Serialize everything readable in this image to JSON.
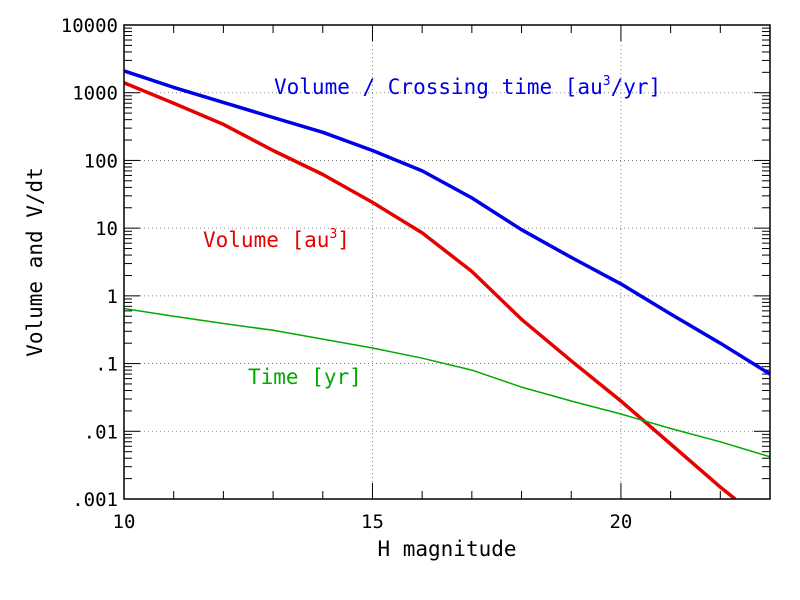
{
  "chart_data": {
    "type": "line",
    "title": "",
    "xlabel": "H magnitude",
    "ylabel": "Volume and V/dt",
    "xlim": [
      10,
      23
    ],
    "ylim": [
      0.001,
      10000
    ],
    "yscale": "log",
    "grid": true,
    "x_ticks": [
      {
        "value": 10,
        "label": "10"
      },
      {
        "value": 15,
        "label": "15"
      },
      {
        "value": 20,
        "label": "20"
      }
    ],
    "y_ticks": [
      {
        "value": 0.001,
        "label": ".001"
      },
      {
        "value": 0.01,
        "label": ".01"
      },
      {
        "value": 0.1,
        "label": ".1"
      },
      {
        "value": 1,
        "label": "1"
      },
      {
        "value": 10,
        "label": "10"
      },
      {
        "value": 100,
        "label": "100"
      },
      {
        "value": 1000,
        "label": "1000"
      },
      {
        "value": 10000,
        "label": "10000"
      }
    ],
    "series": [
      {
        "name": "Volume / Crossing time [au3/yr]",
        "color": "#0000e6",
        "x": [
          10,
          11,
          12,
          13,
          14,
          15,
          16,
          17,
          18,
          19,
          20,
          21,
          22,
          23
        ],
        "y": [
          2100,
          1200,
          720,
          430,
          260,
          140,
          70,
          28,
          9.5,
          3.7,
          1.5,
          0.54,
          0.2,
          0.07
        ]
      },
      {
        "name": "Volume [au3]",
        "color": "#e60000",
        "x": [
          10,
          11,
          12,
          13,
          14,
          15,
          16,
          17,
          18,
          19,
          20,
          21,
          22,
          22.3
        ],
        "y": [
          1400,
          700,
          340,
          140,
          62,
          24,
          8.5,
          2.3,
          0.45,
          0.11,
          0.028,
          0.0065,
          0.0015,
          0.001
        ]
      },
      {
        "name": "Time [yr]",
        "color": "#00aa00",
        "x": [
          10,
          11,
          12,
          13,
          14,
          15,
          16,
          17,
          18,
          19,
          20,
          21,
          22,
          23
        ],
        "y": [
          0.65,
          0.5,
          0.39,
          0.31,
          0.23,
          0.17,
          0.12,
          0.08,
          0.045,
          0.028,
          0.018,
          0.011,
          0.007,
          0.0042
        ]
      }
    ],
    "annotations": [
      {
        "series": 0,
        "prefix": "Volume / Crossing time [au",
        "sup": "3",
        "suffix": "/yr]"
      },
      {
        "series": 1,
        "prefix": "Volume [au",
        "sup": "3",
        "suffix": "]"
      },
      {
        "series": 2,
        "prefix": "Time [yr]",
        "sup": "",
        "suffix": ""
      }
    ]
  }
}
